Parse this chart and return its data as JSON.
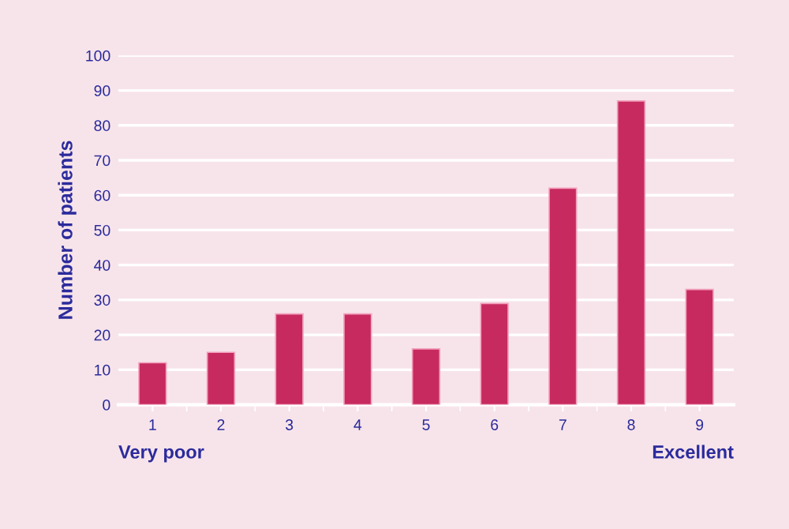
{
  "chart_data": {
    "type": "bar",
    "ylabel": "Number of patients",
    "categories": [
      "1",
      "2",
      "3",
      "4",
      "5",
      "6",
      "7",
      "8",
      "9"
    ],
    "values": [
      12,
      15,
      26,
      26,
      16,
      29,
      62,
      87,
      33
    ],
    "color": "#c72a5e",
    "ylim": [
      0,
      100
    ],
    "yticks": [
      0,
      10,
      20,
      30,
      40,
      50,
      60,
      70,
      80,
      90,
      100
    ],
    "grid": "y",
    "annotations": [
      "Very poor",
      "Excellent"
    ]
  }
}
